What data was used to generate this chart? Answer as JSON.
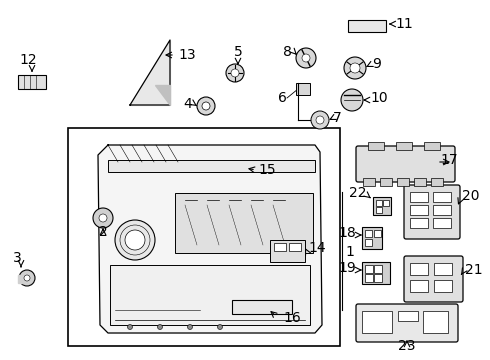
{
  "bg_color": "#ffffff",
  "line_color": "#000000",
  "text_color": "#000000",
  "figsize": [
    4.9,
    3.6
  ],
  "dpi": 100
}
